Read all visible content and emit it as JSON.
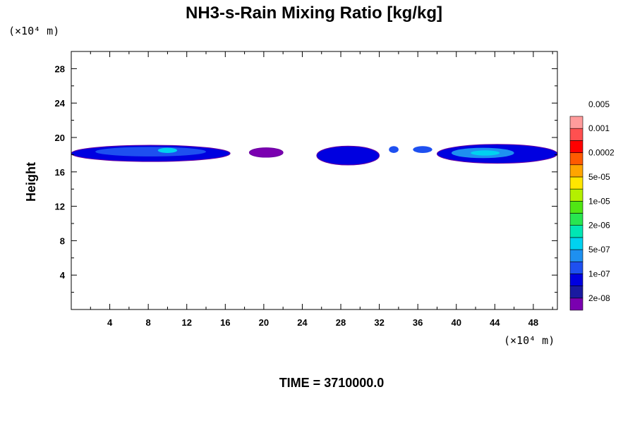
{
  "chart_data": {
    "type": "heatmap",
    "title": "NH3-s-Rain Mixing Ratio [kg/kg]",
    "ylabel": "Height",
    "x_unit": "(×10⁴ m)",
    "y_unit": "(×10⁴ m)",
    "xlim": [
      0,
      50.5
    ],
    "ylim": [
      0,
      30
    ],
    "x_ticks": [
      4,
      8,
      12,
      16,
      20,
      24,
      28,
      32,
      36,
      40,
      44,
      48
    ],
    "y_ticks": [
      4,
      8,
      12,
      16,
      20,
      24,
      28
    ],
    "colorbar": {
      "colors": [
        "#7a00b0",
        "#1a1aa0",
        "#0000e0",
        "#1e50f0",
        "#1e90f0",
        "#00d2f0",
        "#00e6b4",
        "#28e650",
        "#50e614",
        "#b4f000",
        "#ffe600",
        "#ffa500",
        "#ff5a00",
        "#ff0000",
        "#ff5050",
        "#ff9b9b"
      ],
      "labels": [
        "2e-08",
        "1e-07",
        "5e-07",
        "2e-06",
        "1e-05",
        "5e-05",
        "0.0002",
        "0.001",
        "0.005"
      ]
    },
    "features": [
      {
        "x0": 0,
        "x1": 16.5,
        "y0": 17.2,
        "y1": 19.1,
        "level": 2
      },
      {
        "x0": 2.5,
        "x1": 14,
        "y0": 17.8,
        "y1": 18.9,
        "level": 3
      },
      {
        "x0": 9,
        "x1": 11,
        "y0": 18.2,
        "y1": 18.8,
        "level": 5
      },
      {
        "x0": 18.5,
        "x1": 22,
        "y0": 17.7,
        "y1": 18.8,
        "level": 0
      },
      {
        "x0": 25.5,
        "x1": 32,
        "y0": 16.8,
        "y1": 19,
        "level": 2
      },
      {
        "x0": 33,
        "x1": 34,
        "y0": 18.2,
        "y1": 19,
        "level": 3
      },
      {
        "x0": 35.5,
        "x1": 37.5,
        "y0": 18.2,
        "y1": 19,
        "level": 3
      },
      {
        "x0": 38,
        "x1": 50.5,
        "y0": 17,
        "y1": 19.2,
        "level": 2
      },
      {
        "x0": 39.5,
        "x1": 46,
        "y0": 17.6,
        "y1": 18.8,
        "level": 4
      },
      {
        "x0": 41.5,
        "x1": 44.5,
        "y0": 17.9,
        "y1": 18.5,
        "level": 5
      }
    ]
  },
  "time_label": "TIME = 3710000.0"
}
